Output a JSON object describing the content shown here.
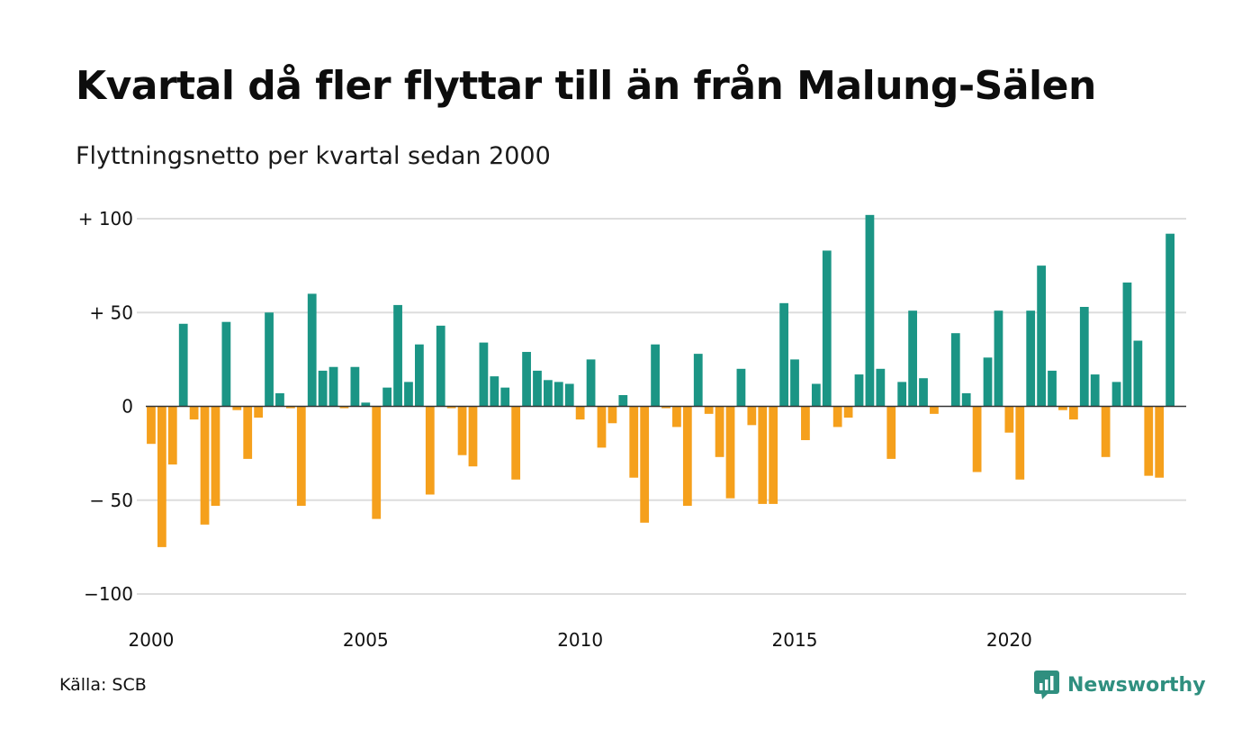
{
  "header": {
    "title": "Kvartal då fler flyttar till än från Malung-Sälen",
    "subtitle": "Flyttningsnetto per kvartal sedan 2000"
  },
  "footer": {
    "source": "Källa: SCB",
    "brand": "Newsworthy"
  },
  "icons": {
    "brand_logo": "bar-chart-speech-bubble-icon"
  },
  "colors": {
    "positive": "#1b9585",
    "negative": "#f5a01c",
    "grid": "#dddddd",
    "brand": "#2f8f7f"
  },
  "chart_data": {
    "type": "bar",
    "title": "Kvartal då fler flyttar till än från Malung-Sälen",
    "subtitle": "Flyttningsnetto per kvartal sedan 2000",
    "xlabel": "",
    "ylabel": "",
    "x_start": "2000 Q1",
    "x_end": "2024 Q1",
    "ylim": [
      -100,
      100
    ],
    "y_ticks": [
      {
        "value": 100,
        "label": "+ 100"
      },
      {
        "value": 50,
        "label": "+  50"
      },
      {
        "value": 0,
        "label": "0"
      },
      {
        "value": -50,
        "label": "− 50"
      },
      {
        "value": -100,
        "label": "−100"
      }
    ],
    "x_ticks": [
      "2000",
      "2005",
      "2010",
      "2015",
      "2020"
    ],
    "grid": true,
    "legend": "none",
    "quarters": [
      "2000 Q1",
      "2000 Q2",
      "2000 Q3",
      "2000 Q4",
      "2001 Q1",
      "2001 Q2",
      "2001 Q3",
      "2001 Q4",
      "2002 Q1",
      "2002 Q2",
      "2002 Q3",
      "2002 Q4",
      "2003 Q1",
      "2003 Q2",
      "2003 Q3",
      "2003 Q4",
      "2004 Q1",
      "2004 Q2",
      "2004 Q3",
      "2004 Q4",
      "2005 Q1",
      "2005 Q2",
      "2005 Q3",
      "2005 Q4",
      "2006 Q1",
      "2006 Q2",
      "2006 Q3",
      "2006 Q4",
      "2007 Q1",
      "2007 Q2",
      "2007 Q3",
      "2007 Q4",
      "2008 Q1",
      "2008 Q2",
      "2008 Q3",
      "2008 Q4",
      "2009 Q1",
      "2009 Q2",
      "2009 Q3",
      "2009 Q4",
      "2010 Q1",
      "2010 Q2",
      "2010 Q3",
      "2010 Q4",
      "2011 Q1",
      "2011 Q2",
      "2011 Q3",
      "2011 Q4",
      "2012 Q1",
      "2012 Q2",
      "2012 Q3",
      "2012 Q4",
      "2013 Q1",
      "2013 Q2",
      "2013 Q3",
      "2013 Q4",
      "2014 Q1",
      "2014 Q2",
      "2014 Q3",
      "2014 Q4",
      "2015 Q1",
      "2015 Q2",
      "2015 Q3",
      "2015 Q4",
      "2016 Q1",
      "2016 Q2",
      "2016 Q3",
      "2016 Q4",
      "2017 Q1",
      "2017 Q2",
      "2017 Q3",
      "2017 Q4",
      "2018 Q1",
      "2018 Q2",
      "2018 Q3",
      "2018 Q4",
      "2019 Q1",
      "2019 Q2",
      "2019 Q3",
      "2019 Q4",
      "2020 Q1",
      "2020 Q2",
      "2020 Q3",
      "2020 Q4",
      "2021 Q1",
      "2021 Q2",
      "2021 Q3",
      "2021 Q4",
      "2022 Q1",
      "2022 Q2",
      "2022 Q3",
      "2022 Q4",
      "2023 Q1",
      "2023 Q2",
      "2023 Q3",
      "2023 Q4",
      "2024 Q1"
    ],
    "values": [
      -20,
      -75,
      -31,
      44,
      -7,
      -63,
      -53,
      45,
      -2,
      -28,
      -6,
      50,
      7,
      -1,
      -53,
      60,
      19,
      21,
      -1,
      21,
      2,
      -60,
      10,
      54,
      13,
      33,
      -47,
      43,
      -1,
      -26,
      -32,
      34,
      16,
      10,
      -39,
      29,
      19,
      14,
      13,
      12,
      -7,
      25,
      -22,
      -9,
      6,
      -38,
      -62,
      33,
      -1,
      -11,
      -53,
      28,
      -4,
      -27,
      -49,
      20,
      -10,
      -52,
      -52,
      55,
      25,
      -18,
      12,
      83,
      -11,
      -6,
      17,
      102,
      20,
      -28,
      13,
      51,
      15,
      -4,
      0,
      39,
      7,
      -35,
      26,
      51,
      -14,
      -39,
      51,
      75,
      19,
      -2,
      -7,
      53,
      17,
      -27,
      13,
      66,
      35,
      -37,
      -38,
      92,
      0
    ]
  }
}
